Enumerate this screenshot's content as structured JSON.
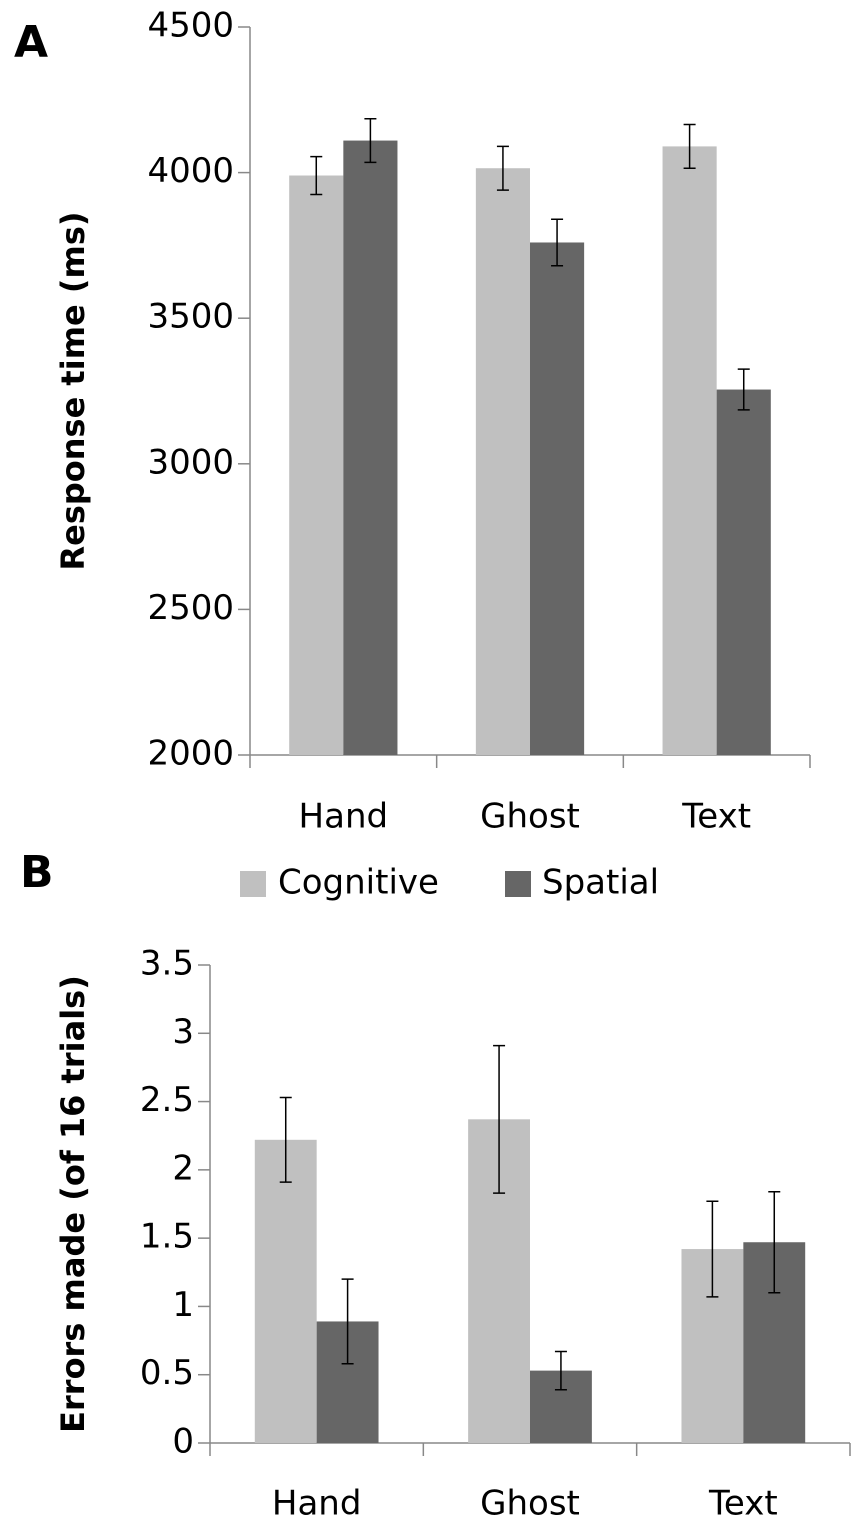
{
  "chart_data": [
    {
      "type": "bar",
      "panel_label": "A",
      "ylabel": "Response time (ms)",
      "categories": [
        "Hand",
        "Ghost",
        "Text"
      ],
      "series": [
        {
          "name": "Cognitive",
          "color": "#c0c0c0",
          "values": [
            3990,
            4015,
            4090
          ],
          "errors": [
            65,
            75,
            75
          ]
        },
        {
          "name": "Spatial",
          "color": "#666666",
          "values": [
            4110,
            3760,
            3255
          ],
          "errors": [
            75,
            80,
            70
          ]
        }
      ],
      "ylim": [
        2000,
        4500
      ],
      "yticks": [
        2000,
        2500,
        3000,
        3500,
        4000,
        4500
      ],
      "grid": false,
      "legend": "bottom"
    },
    {
      "type": "bar",
      "panel_label": "B",
      "ylabel": "Errors made (of 16 trials)",
      "categories": [
        "Hand",
        "Ghost",
        "Text"
      ],
      "series": [
        {
          "color": "#c0c0c0",
          "values": [
            2.22,
            2.37,
            1.42
          ],
          "errors": [
            0.31,
            0.54,
            0.35
          ]
        },
        {
          "color": "#666666",
          "values": [
            0.89,
            0.53,
            1.47
          ],
          "errors": [
            0.31,
            0.14,
            0.37
          ]
        }
      ],
      "ylim": [
        0,
        3.5
      ],
      "yticks": [
        0,
        0.5,
        1,
        1.5,
        2,
        2.5,
        3,
        3.5
      ],
      "grid": false
    }
  ]
}
